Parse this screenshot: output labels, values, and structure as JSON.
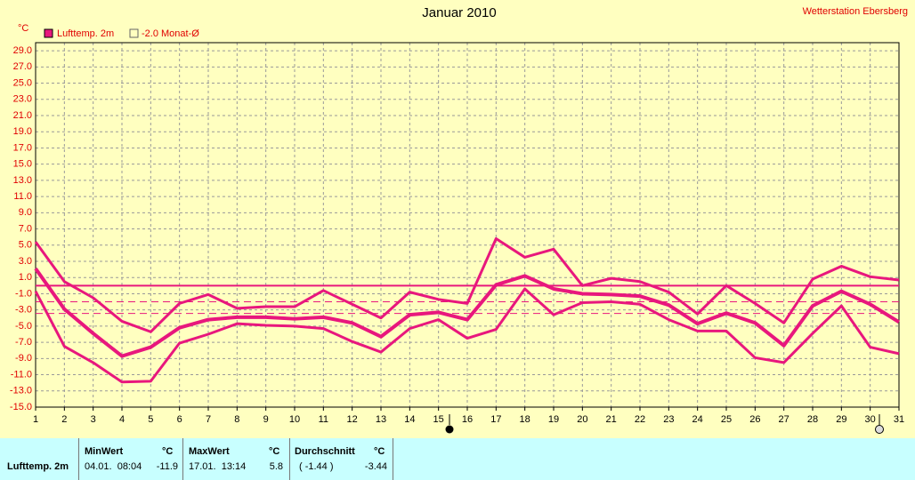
{
  "chart_data": {
    "type": "line",
    "title": "Januar 2010",
    "station": "Wetterstation Ebersberg",
    "unit": "°C",
    "x": [
      1,
      2,
      3,
      4,
      5,
      6,
      7,
      8,
      9,
      10,
      11,
      12,
      13,
      14,
      15,
      16,
      17,
      18,
      19,
      20,
      21,
      22,
      23,
      24,
      25,
      26,
      27,
      28,
      29,
      30,
      31
    ],
    "xlim": [
      1,
      31
    ],
    "xticks": [
      1,
      2,
      3,
      4,
      5,
      6,
      7,
      8,
      9,
      10,
      11,
      12,
      13,
      14,
      15,
      16,
      17,
      18,
      19,
      20,
      21,
      22,
      23,
      24,
      25,
      26,
      27,
      28,
      29,
      30,
      31
    ],
    "ylim": [
      -15,
      30
    ],
    "yticks": [
      {
        "value": 29,
        "label": "29.0"
      },
      {
        "value": 27,
        "label": "27.0"
      },
      {
        "value": 25,
        "label": "25.0"
      },
      {
        "value": 23,
        "label": "23.0"
      },
      {
        "value": 21,
        "label": "21.0"
      },
      {
        "value": 19,
        "label": "19.0"
      },
      {
        "value": 17,
        "label": "17.0"
      },
      {
        "value": 15,
        "label": "15.0"
      },
      {
        "value": 13,
        "label": "13.0"
      },
      {
        "value": 11,
        "label": "11.0"
      },
      {
        "value": 9,
        "label": "9.0"
      },
      {
        "value": 7,
        "label": "7.0"
      },
      {
        "value": 5,
        "label": "5.0"
      },
      {
        "value": 3,
        "label": "3.0"
      },
      {
        "value": 1,
        "label": "1.0"
      },
      {
        "value": -1,
        "label": "-1.0"
      },
      {
        "value": -3,
        "label": "-3.0"
      },
      {
        "value": -5,
        "label": "-5.0"
      },
      {
        "value": -7,
        "label": "-7.0"
      },
      {
        "value": -9,
        "label": "-9.0"
      },
      {
        "value": -11,
        "label": "-11.0"
      },
      {
        "value": -13,
        "label": "-13.0"
      },
      {
        "value": -15,
        "label": "-15.0"
      }
    ],
    "grid": true,
    "series": [
      {
        "name": "Lufttemp. 2m",
        "color": "#e8177d",
        "width": 4,
        "values": [
          2.1,
          -2.9,
          -5.9,
          -8.7,
          -7.6,
          -5.2,
          -4.2,
          -3.9,
          -3.9,
          -4.1,
          -3.9,
          -4.6,
          -6.3,
          -3.6,
          -3.3,
          -4.2,
          0.1,
          1.2,
          -0.4,
          -1.0,
          -1.1,
          -1.3,
          -2.4,
          -4.7,
          -3.4,
          -4.6,
          -7.4,
          -2.5,
          -0.7,
          -2.3,
          -4.5
        ]
      },
      {
        "color": "#e8177d",
        "width": 3,
        "values": [
          5.4,
          0.5,
          -1.5,
          -4.4,
          -5.7,
          -2.2,
          -1.1,
          -2.8,
          -2.6,
          -2.6,
          -0.6,
          -2.3,
          -4.0,
          -0.8,
          -1.7,
          -2.2,
          5.8,
          3.5,
          4.5,
          0.0,
          0.9,
          0.5,
          -0.8,
          -3.5,
          0.0,
          -2.2,
          -4.6,
          0.8,
          2.4,
          1.1,
          0.7
        ]
      },
      {
        "color": "#e8177d",
        "width": 3,
        "values": [
          -0.7,
          -7.5,
          -9.5,
          -11.9,
          -11.8,
          -7.1,
          -6.0,
          -4.7,
          -4.9,
          -5.0,
          -5.3,
          -6.9,
          -8.2,
          -5.3,
          -4.2,
          -6.5,
          -5.4,
          -0.4,
          -3.6,
          -2.1,
          -2.0,
          -2.3,
          -4.2,
          -5.6,
          -5.6,
          -8.9,
          -9.5,
          -5.9,
          -2.5,
          -7.6,
          -8.4
        ]
      }
    ],
    "normal": {
      "label": "-2.0 Monat-Ø",
      "value": -2.0
    },
    "average": -3.44
  },
  "table": {
    "headers": [
      "MinWert",
      "°C",
      "MaxWert",
      "°C",
      "Durchschnitt",
      "°C"
    ],
    "rows": [
      [
        "Lufttemp. 2m",
        "04.01.  08:04",
        "-11.9",
        "17.01.  13:14",
        "5.8",
        "( -1.44 )",
        "-3.44"
      ]
    ]
  }
}
